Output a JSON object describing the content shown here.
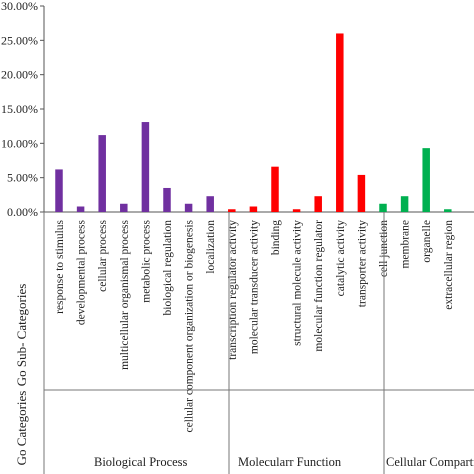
{
  "chart_data": {
    "type": "bar",
    "ytick_labels": [
      "0.00%",
      "5.00%",
      "10.00%",
      "15.00%",
      "20.00%",
      "25.00%",
      "30.00%"
    ],
    "ylim": [
      0,
      30
    ],
    "grid": false,
    "legend": "none",
    "side_label_sub": "Go Sub- Categories",
    "side_label_cat": "Go Categories",
    "categories": [
      "response to stimulus",
      "developmental process",
      "cellular process",
      "multicellular organismal process",
      "metabolic process",
      "biological regulation",
      "cellular component organization or biogenesis",
      "localization",
      "transcription regulator activity",
      "molecular transducer activity",
      "binding",
      "structural molecule activity",
      "molecular function regulator",
      "catalytic activity",
      "transporter activity",
      "cell junction",
      "membrane",
      "organelle",
      "extracellular region"
    ],
    "values": [
      6.2,
      0.8,
      11.2,
      1.2,
      13.1,
      3.5,
      1.2,
      2.3,
      0.4,
      0.8,
      6.6,
      0.4,
      2.3,
      26.0,
      5.4,
      1.2,
      2.3,
      9.3,
      0.4
    ],
    "groups": [
      {
        "name": "Biological Process",
        "color": "#7030a0",
        "start": 0,
        "end": 7
      },
      {
        "name": "Molecularr Function",
        "color": "#ff0000",
        "start": 8,
        "end": 14
      },
      {
        "name": "Cellular Compartment",
        "color": "#00b050",
        "start": 15,
        "end": 18
      }
    ]
  }
}
